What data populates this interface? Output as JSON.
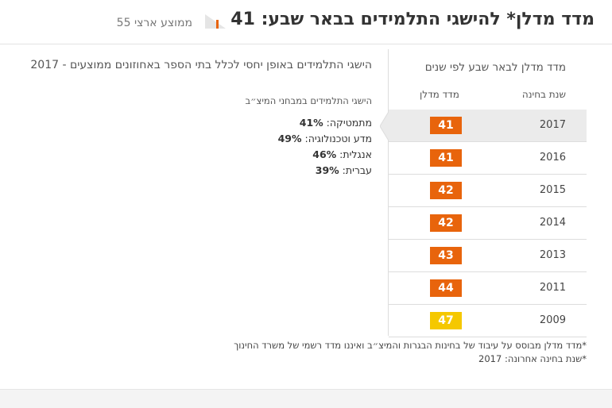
{
  "header": {
    "title": "מדד מדלן* להישגי התלמידים בבאר שבע: 41",
    "national_average": "ממוצע ארצי 55"
  },
  "left_panel": {
    "title": "הישגי התלמידים באופן יחסי לכלל בתי הספר באחוזונים ממוצעים - 2017",
    "subtitle": "הישגי התלמידים במבחני המיצ״ב",
    "scores": [
      {
        "label": "מתמטיקה:",
        "value": "41%"
      },
      {
        "label": "מדע וטכנולוגיה:",
        "value": "49%"
      },
      {
        "label": "אנגלית:",
        "value": "46%"
      },
      {
        "label": "עברית:",
        "value": "39%"
      }
    ]
  },
  "right_panel": {
    "title": "מדד מדלן לבאר שבע לפי שנים",
    "columns": [
      "שנת בחינה",
      "מדד מדלן"
    ],
    "rows": [
      {
        "year": "2017",
        "score": "41",
        "color": "#e8640c"
      },
      {
        "year": "2016",
        "score": "41",
        "color": "#e8640c"
      },
      {
        "year": "2015",
        "score": "42",
        "color": "#e8640c"
      },
      {
        "year": "2014",
        "score": "42",
        "color": "#e8640c"
      },
      {
        "year": "2013",
        "score": "43",
        "color": "#e8640c"
      },
      {
        "year": "2011",
        "score": "44",
        "color": "#e8640c"
      },
      {
        "year": "2009",
        "score": "47",
        "color": "#f5c800"
      }
    ]
  },
  "footnotes": [
    "*מדד מדלן מבוסס על עיבוד של בחינות הבגרות והמיצ״ב ואיננו מדד רשמי של משרד החינוך",
    "*שנת בחינה אחרונה: 2017"
  ]
}
